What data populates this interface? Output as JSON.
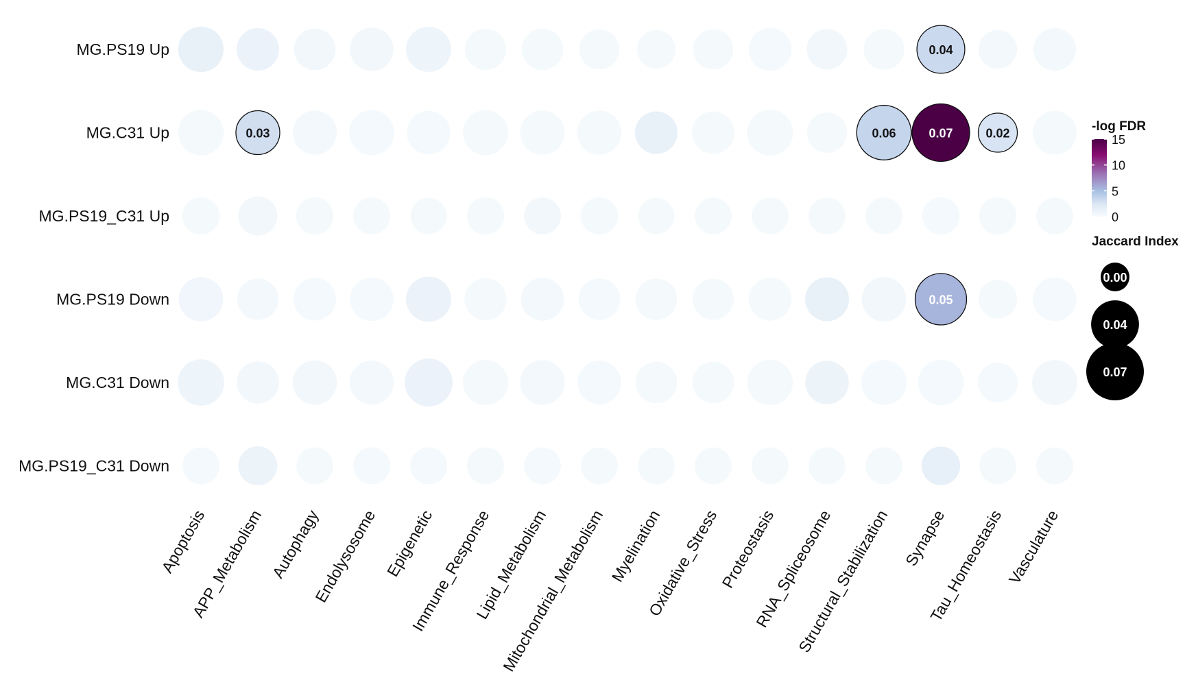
{
  "chart_data": {
    "type": "dot-matrix",
    "rows": [
      "MG.PS19 Up",
      "MG.C31 Up",
      "MG.PS19_C31 Up",
      "MG.PS19 Down",
      "MG.C31 Down",
      "MG.PS19_C31 Down"
    ],
    "columns": [
      "Apoptosis",
      "APP_Metabolism",
      "Autophagy",
      "Endolysosome",
      "Epigenetic",
      "Immune_Response",
      "Lipid_Metabolism",
      "Mitochondrial_Metabolism",
      "Myelination",
      "Oxidative_Stress",
      "Proteostasis",
      "RNA_Spliceosome",
      "Structural_Stabilization",
      "Synapse",
      "Tau_Homeostasis",
      "Vasculature"
    ],
    "jaccard": [
      [
        0.034,
        0.027,
        0.025,
        0.029,
        0.033,
        0.024,
        0.025,
        0.022,
        0.019,
        0.022,
        0.028,
        0.023,
        0.023,
        0.04,
        0.019,
        0.027
      ],
      [
        0.034,
        0.03,
        0.03,
        0.033,
        0.029,
        0.033,
        0.031,
        0.031,
        0.027,
        0.027,
        0.035,
        0.022,
        0.06,
        0.07,
        0.02,
        0.03
      ],
      [
        0.017,
        0.02,
        0.017,
        0.016,
        0.015,
        0.017,
        0.016,
        0.017,
        0.015,
        0.016,
        0.016,
        0.016,
        0.016,
        0.017,
        0.017,
        0.016
      ],
      [
        0.031,
        0.024,
        0.027,
        0.029,
        0.033,
        0.026,
        0.028,
        0.025,
        0.025,
        0.024,
        0.028,
        0.03,
        0.031,
        0.05,
        0.019,
        0.029
      ],
      [
        0.036,
        0.026,
        0.031,
        0.03,
        0.04,
        0.033,
        0.032,
        0.029,
        0.025,
        0.025,
        0.034,
        0.029,
        0.033,
        0.034,
        0.021,
        0.033
      ],
      [
        0.016,
        0.02,
        0.016,
        0.016,
        0.016,
        0.016,
        0.016,
        0.016,
        0.016,
        0.016,
        0.016,
        0.016,
        0.016,
        0.019,
        0.016,
        0.016
      ]
    ],
    "neg_log_fdr": [
      [
        1.3,
        1.1,
        0.5,
        0.5,
        0.9,
        0.2,
        0.2,
        0.2,
        0.2,
        0.2,
        0.3,
        0.5,
        0.2,
        3.3,
        0.4,
        0.4
      ],
      [
        0.2,
        3.0,
        0.4,
        0.3,
        0.3,
        0.2,
        0.2,
        0.2,
        1.4,
        0.2,
        0.2,
        0.2,
        3.6,
        15.0,
        2.6,
        0.2
      ],
      [
        0.2,
        0.5,
        0.2,
        0.2,
        0.2,
        0.2,
        0.5,
        0.2,
        0.2,
        0.2,
        0.2,
        0.2,
        0.2,
        0.3,
        0.2,
        0.2
      ],
      [
        0.6,
        0.4,
        0.3,
        0.3,
        1.1,
        0.2,
        0.4,
        0.3,
        0.2,
        0.2,
        0.2,
        1.3,
        0.5,
        5.5,
        0.2,
        0.3
      ],
      [
        0.9,
        0.5,
        0.5,
        0.4,
        1.1,
        0.2,
        0.4,
        0.3,
        0.2,
        0.2,
        0.2,
        1.0,
        0.3,
        0.3,
        0.3,
        0.5
      ],
      [
        0.3,
        1.0,
        0.2,
        0.3,
        0.3,
        0.2,
        0.3,
        0.2,
        0.2,
        0.2,
        0.2,
        0.2,
        0.2,
        1.5,
        0.2,
        0.2
      ]
    ],
    "labels": [
      [
        null,
        null,
        null,
        null,
        null,
        null,
        null,
        null,
        null,
        null,
        null,
        null,
        null,
        "0.04",
        null,
        null
      ],
      [
        null,
        "0.03",
        null,
        null,
        null,
        null,
        null,
        null,
        null,
        null,
        null,
        null,
        "0.06",
        "0.07",
        "0.02",
        null
      ],
      [
        null,
        null,
        null,
        null,
        null,
        null,
        null,
        null,
        null,
        null,
        null,
        null,
        null,
        null,
        null,
        null
      ],
      [
        null,
        null,
        null,
        null,
        null,
        null,
        null,
        null,
        null,
        null,
        null,
        null,
        null,
        "0.05",
        null,
        null
      ],
      [
        null,
        null,
        null,
        null,
        null,
        null,
        null,
        null,
        null,
        null,
        null,
        null,
        null,
        null,
        null,
        null
      ],
      [
        null,
        null,
        null,
        null,
        null,
        null,
        null,
        null,
        null,
        null,
        null,
        null,
        null,
        null,
        null,
        null
      ]
    ],
    "color_legend": {
      "title": "-log FDR",
      "ticks": [
        0,
        5,
        10,
        15
      ],
      "range": [
        0,
        15
      ],
      "palette": [
        "#f6fbfd",
        "#dfe9f5",
        "#a9c1e3",
        "#9b74b5",
        "#870c6f",
        "#4b0046"
      ]
    },
    "size_legend": {
      "title": "Jaccard Index",
      "values": [
        0.0,
        0.04,
        0.07
      ],
      "labels": [
        "0.00",
        "0.04",
        "0.07"
      ],
      "fill": "#000000",
      "text_color": "#ffffff"
    },
    "highlight_threshold_jaccard": 0.02,
    "legend_position": "right"
  }
}
